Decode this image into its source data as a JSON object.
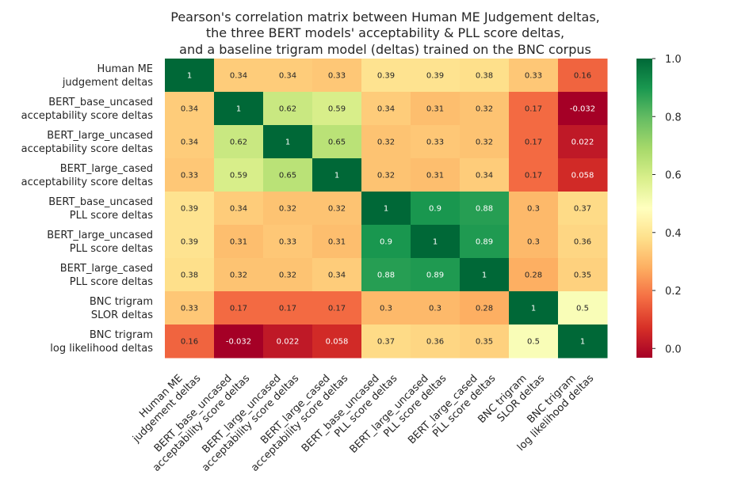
{
  "chart_data": {
    "type": "heatmap",
    "title": [
      "Pearson's correlation matrix between Human ME Judgement deltas,",
      "the three BERT models' acceptability & PLL score deltas,",
      "and a baseline trigram model (deltas) trained on the BNC corpus"
    ],
    "row_labels": [
      [
        "Human ME",
        "judgement deltas"
      ],
      [
        "BERT_base_uncased",
        "acceptability score deltas"
      ],
      [
        "BERT_large_uncased",
        "acceptability score deltas"
      ],
      [
        "BERT_large_cased",
        "acceptability score deltas"
      ],
      [
        "BERT_base_uncased",
        "PLL score deltas"
      ],
      [
        "BERT_large_uncased",
        "PLL score deltas"
      ],
      [
        "BERT_large_cased",
        "PLL score deltas"
      ],
      [
        "BNC trigram",
        "SLOR deltas"
      ],
      [
        "BNC trigram",
        "log likelihood deltas"
      ]
    ],
    "col_labels": [
      [
        "Human ME",
        "judgement deltas"
      ],
      [
        "BERT_base_uncased",
        "acceptability score deltas"
      ],
      [
        "BERT_large_uncased",
        "acceptability score deltas"
      ],
      [
        "BERT_large_cased",
        "acceptability score deltas"
      ],
      [
        "BERT_base_uncased",
        "PLL score deltas"
      ],
      [
        "BERT_large_uncased",
        "PLL score deltas"
      ],
      [
        "BERT_large_cased",
        "PLL score deltas"
      ],
      [
        "BNC trigram",
        "SLOR deltas"
      ],
      [
        "BNC trigram",
        "log likelihood deltas"
      ]
    ],
    "values": [
      [
        1,
        0.34,
        0.34,
        0.33,
        0.39,
        0.39,
        0.38,
        0.33,
        0.16
      ],
      [
        0.34,
        1,
        0.62,
        0.59,
        0.34,
        0.31,
        0.32,
        0.17,
        -0.032
      ],
      [
        0.34,
        0.62,
        1,
        0.65,
        0.32,
        0.33,
        0.32,
        0.17,
        0.022
      ],
      [
        0.33,
        0.59,
        0.65,
        1,
        0.32,
        0.31,
        0.34,
        0.17,
        0.058
      ],
      [
        0.39,
        0.34,
        0.32,
        0.32,
        1,
        0.9,
        0.88,
        0.3,
        0.37
      ],
      [
        0.39,
        0.31,
        0.33,
        0.31,
        0.9,
        1,
        0.89,
        0.3,
        0.36
      ],
      [
        0.38,
        0.32,
        0.32,
        0.34,
        0.88,
        0.89,
        1,
        0.28,
        0.35
      ],
      [
        0.33,
        0.17,
        0.17,
        0.17,
        0.3,
        0.3,
        0.28,
        1,
        0.5
      ],
      [
        0.16,
        -0.032,
        0.022,
        0.058,
        0.37,
        0.36,
        0.35,
        0.5,
        1
      ]
    ],
    "value_labels": [
      [
        "1",
        "0.34",
        "0.34",
        "0.33",
        "0.39",
        "0.39",
        "0.38",
        "0.33",
        "0.16"
      ],
      [
        "0.34",
        "1",
        "0.62",
        "0.59",
        "0.34",
        "0.31",
        "0.32",
        "0.17",
        "-0.032"
      ],
      [
        "0.34",
        "0.62",
        "1",
        "0.65",
        "0.32",
        "0.33",
        "0.32",
        "0.17",
        "0.022"
      ],
      [
        "0.33",
        "0.59",
        "0.65",
        "1",
        "0.32",
        "0.31",
        "0.34",
        "0.17",
        "0.058"
      ],
      [
        "0.39",
        "0.34",
        "0.32",
        "0.32",
        "1",
        "0.9",
        "0.88",
        "0.3",
        "0.37"
      ],
      [
        "0.39",
        "0.31",
        "0.33",
        "0.31",
        "0.9",
        "1",
        "0.89",
        "0.3",
        "0.36"
      ],
      [
        "0.38",
        "0.32",
        "0.32",
        "0.34",
        "0.88",
        "0.89",
        "1",
        "0.28",
        "0.35"
      ],
      [
        "0.33",
        "0.17",
        "0.17",
        "0.17",
        "0.3",
        "0.3",
        "0.28",
        "1",
        "0.5"
      ],
      [
        "0.16",
        "-0.032",
        "0.022",
        "0.058",
        "0.37",
        "0.36",
        "0.35",
        "0.5",
        "1"
      ]
    ],
    "colormap": "RdYlGn",
    "vmin": -0.032,
    "vmax": 1,
    "colorbar_ticks": [
      0.0,
      0.2,
      0.4,
      0.6,
      0.8,
      1.0
    ],
    "colorbar_tick_labels": [
      "0.0",
      "0.2",
      "0.4",
      "0.6",
      "0.8",
      "1.0"
    ],
    "legend_placement": "right"
  }
}
